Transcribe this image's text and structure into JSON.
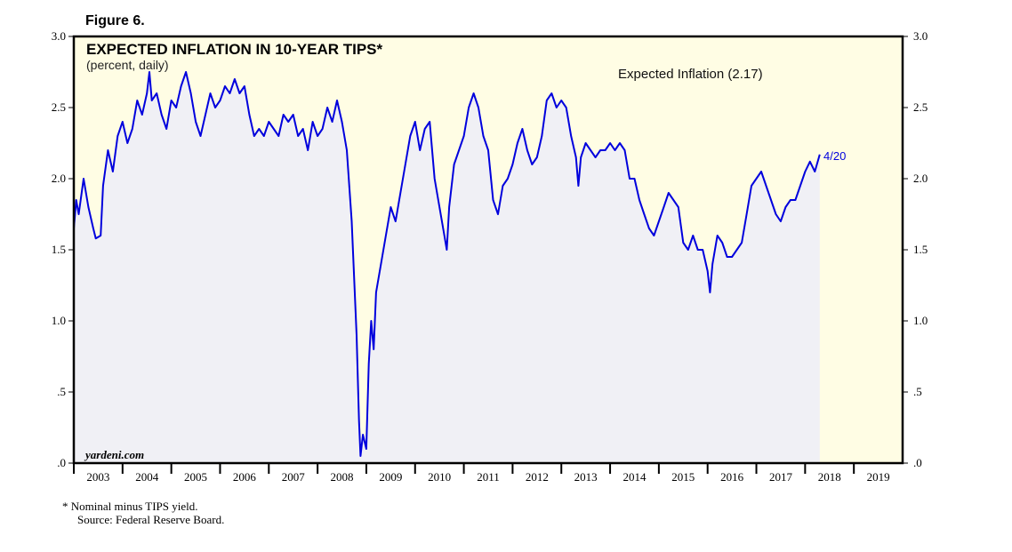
{
  "chart_data": {
    "type": "line",
    "figure_label": "Figure 6.",
    "title": "EXPECTED INFLATION IN 10-YEAR TIPS*",
    "subtitle": "(percent, daily)",
    "legend_label": "Expected Inflation (2.17)",
    "end_label": "4/20",
    "watermark": "yardeni.com",
    "footnote": "*  Nominal minus TIPS yield.",
    "source": "Source: Federal Reserve Board.",
    "color": "#0000dd",
    "xlim": [
      2003,
      2020
    ],
    "ylim": [
      0,
      3
    ],
    "y2lim": [
      0,
      3
    ],
    "xticks": [
      {
        "value": 2003,
        "label": "2003"
      },
      {
        "value": 2004,
        "label": "2004"
      },
      {
        "value": 2005,
        "label": "2005"
      },
      {
        "value": 2006,
        "label": "2006"
      },
      {
        "value": 2007,
        "label": "2007"
      },
      {
        "value": 2008,
        "label": "2008"
      },
      {
        "value": 2009,
        "label": "2009"
      },
      {
        "value": 2010,
        "label": "2010"
      },
      {
        "value": 2011,
        "label": "2011"
      },
      {
        "value": 2012,
        "label": "2012"
      },
      {
        "value": 2013,
        "label": "2013"
      },
      {
        "value": 2014,
        "label": "2014"
      },
      {
        "value": 2015,
        "label": "2015"
      },
      {
        "value": 2016,
        "label": "2016"
      },
      {
        "value": 2017,
        "label": "2017"
      },
      {
        "value": 2018,
        "label": "2018"
      },
      {
        "value": 2019,
        "label": "2019"
      }
    ],
    "yticks": [
      {
        "value": 0,
        "label": ".0"
      },
      {
        "value": 0.5,
        "label": ".5"
      },
      {
        "value": 1,
        "label": "1.0"
      },
      {
        "value": 1.5,
        "label": "1.5"
      },
      {
        "value": 2,
        "label": "2.0"
      },
      {
        "value": 2.5,
        "label": "2.5"
      },
      {
        "value": 3,
        "label": "3.0"
      }
    ],
    "y2ticks": [
      {
        "value": 0,
        "label": ".0"
      },
      {
        "value": 0.5,
        "label": ".5"
      },
      {
        "value": 1,
        "label": "1.0"
      },
      {
        "value": 1.5,
        "label": "1.5"
      },
      {
        "value": 2,
        "label": "2.0"
      },
      {
        "value": 2.5,
        "label": "2.5"
      },
      {
        "value": 3,
        "label": "3.0"
      }
    ],
    "x": [
      2003.0,
      2003.05,
      2003.1,
      2003.2,
      2003.3,
      2003.4,
      2003.45,
      2003.55,
      2003.6,
      2003.7,
      2003.8,
      2003.9,
      2004.0,
      2004.1,
      2004.2,
      2004.3,
      2004.4,
      2004.5,
      2004.55,
      2004.6,
      2004.7,
      2004.8,
      2004.9,
      2005.0,
      2005.1,
      2005.2,
      2005.3,
      2005.4,
      2005.5,
      2005.6,
      2005.7,
      2005.8,
      2005.9,
      2006.0,
      2006.1,
      2006.2,
      2006.3,
      2006.4,
      2006.5,
      2006.6,
      2006.7,
      2006.8,
      2006.9,
      2007.0,
      2007.1,
      2007.2,
      2007.3,
      2007.4,
      2007.5,
      2007.6,
      2007.7,
      2007.8,
      2007.9,
      2008.0,
      2008.1,
      2008.2,
      2008.3,
      2008.4,
      2008.5,
      2008.6,
      2008.7,
      2008.8,
      2008.85,
      2008.88,
      2008.93,
      2009.0,
      2009.05,
      2009.1,
      2009.15,
      2009.2,
      2009.3,
      2009.4,
      2009.5,
      2009.6,
      2009.7,
      2009.8,
      2009.9,
      2010.0,
      2010.1,
      2010.2,
      2010.3,
      2010.4,
      2010.5,
      2010.6,
      2010.65,
      2010.7,
      2010.8,
      2010.9,
      2011.0,
      2011.1,
      2011.2,
      2011.3,
      2011.4,
      2011.5,
      2011.6,
      2011.7,
      2011.8,
      2011.9,
      2012.0,
      2012.1,
      2012.2,
      2012.3,
      2012.4,
      2012.5,
      2012.6,
      2012.7,
      2012.8,
      2012.9,
      2013.0,
      2013.1,
      2013.2,
      2013.3,
      2013.35,
      2013.4,
      2013.5,
      2013.6,
      2013.7,
      2013.8,
      2013.9,
      2014.0,
      2014.1,
      2014.2,
      2014.3,
      2014.4,
      2014.5,
      2014.6,
      2014.7,
      2014.8,
      2014.9,
      2015.0,
      2015.1,
      2015.2,
      2015.3,
      2015.4,
      2015.5,
      2015.6,
      2015.7,
      2015.8,
      2015.9,
      2016.0,
      2016.05,
      2016.1,
      2016.2,
      2016.3,
      2016.4,
      2016.5,
      2016.6,
      2016.7,
      2016.8,
      2016.9,
      2017.0,
      2017.1,
      2017.2,
      2017.3,
      2017.4,
      2017.5,
      2017.6,
      2017.7,
      2017.8,
      2017.9,
      2018.0,
      2018.1,
      2018.2,
      2018.3
    ],
    "values": [
      1.65,
      1.85,
      1.75,
      2.0,
      1.8,
      1.65,
      1.58,
      1.6,
      1.95,
      2.2,
      2.05,
      2.3,
      2.4,
      2.25,
      2.35,
      2.55,
      2.45,
      2.6,
      2.75,
      2.55,
      2.6,
      2.45,
      2.35,
      2.55,
      2.5,
      2.65,
      2.75,
      2.6,
      2.4,
      2.3,
      2.45,
      2.6,
      2.5,
      2.55,
      2.65,
      2.6,
      2.7,
      2.6,
      2.65,
      2.45,
      2.3,
      2.35,
      2.3,
      2.4,
      2.35,
      2.3,
      2.45,
      2.4,
      2.45,
      2.3,
      2.35,
      2.2,
      2.4,
      2.3,
      2.35,
      2.5,
      2.4,
      2.55,
      2.4,
      2.2,
      1.7,
      0.9,
      0.3,
      0.05,
      0.2,
      0.1,
      0.7,
      1.0,
      0.8,
      1.2,
      1.4,
      1.6,
      1.8,
      1.7,
      1.9,
      2.1,
      2.3,
      2.4,
      2.2,
      2.35,
      2.4,
      2.0,
      1.8,
      1.6,
      1.5,
      1.8,
      2.1,
      2.2,
      2.3,
      2.5,
      2.6,
      2.5,
      2.3,
      2.2,
      1.85,
      1.75,
      1.95,
      2.0,
      2.1,
      2.25,
      2.35,
      2.2,
      2.1,
      2.15,
      2.3,
      2.55,
      2.6,
      2.5,
      2.55,
      2.5,
      2.3,
      2.15,
      1.95,
      2.15,
      2.25,
      2.2,
      2.15,
      2.2,
      2.2,
      2.25,
      2.2,
      2.25,
      2.2,
      2.0,
      2.0,
      1.85,
      1.75,
      1.65,
      1.6,
      1.7,
      1.8,
      1.9,
      1.85,
      1.8,
      1.55,
      1.5,
      1.6,
      1.5,
      1.5,
      1.35,
      1.2,
      1.4,
      1.6,
      1.55,
      1.45,
      1.45,
      1.5,
      1.55,
      1.75,
      1.95,
      2.0,
      2.05,
      1.95,
      1.85,
      1.75,
      1.7,
      1.8,
      1.85,
      1.85,
      1.95,
      2.05,
      2.12,
      2.05,
      2.17
    ]
  }
}
